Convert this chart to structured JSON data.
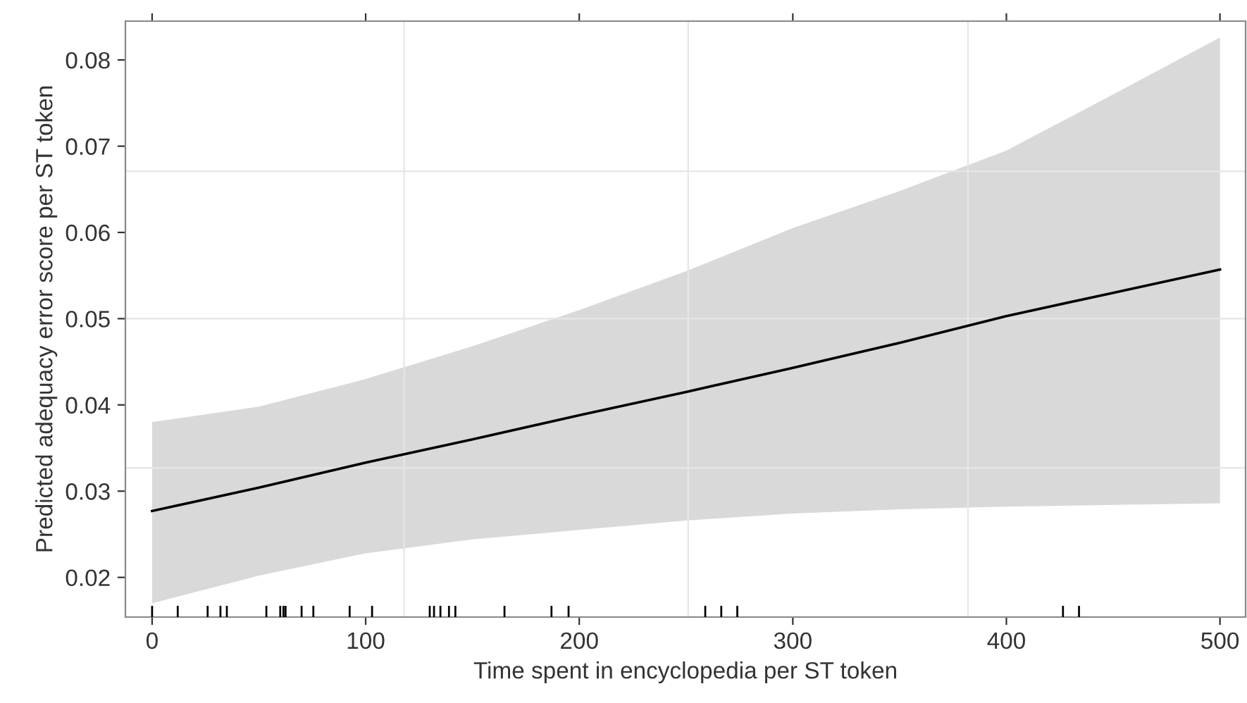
{
  "chart_data": {
    "type": "line",
    "xlabel": "Time spent in encyclopedia per ST token",
    "ylabel": "Predicted adequacy error score per ST token",
    "xlim": [
      -12.5,
      512
    ],
    "ylim": [
      0.0154,
      0.0845
    ],
    "xticks": [
      0,
      100,
      200,
      300,
      400,
      500
    ],
    "yticks": [
      0.02,
      0.03,
      0.04,
      0.05,
      0.06,
      0.07,
      0.08
    ],
    "series": [
      {
        "color": "#000000",
        "x": [
          0,
          50,
          100,
          150,
          200,
          250,
          300,
          350,
          400,
          450,
          500
        ],
        "values": [
          0.0277,
          0.0304,
          0.0333,
          0.036,
          0.0388,
          0.0415,
          0.0443,
          0.0472,
          0.0503,
          0.053,
          0.0557
        ],
        "lower": [
          0.017,
          0.0202,
          0.0228,
          0.0244,
          0.0255,
          0.0266,
          0.0274,
          0.0279,
          0.0282,
          0.0284,
          0.0286
        ],
        "upper": [
          0.038,
          0.0398,
          0.043,
          0.0468,
          0.051,
          0.0555,
          0.0605,
          0.0648,
          0.0695,
          0.076,
          0.0826
        ]
      },
      {
        "type": "bar",
        "color": "#000000",
        "base": [
          0.0154,
          0.0154,
          0.0154,
          0.0154,
          0.0154,
          0.0154,
          0.0154,
          0.0154,
          0.0154,
          0.0154,
          0.0154,
          0.0154,
          0.0154,
          0.0154,
          0.0154,
          0.0154,
          0.0154,
          0.0154,
          0.0154,
          0.0154,
          0.0154,
          0.0154,
          0.0154,
          0.0154,
          0.0154,
          0.0154
        ],
        "x": [
          0,
          12,
          26,
          32,
          35,
          53.5,
          60,
          61.5,
          62.5,
          70,
          75.5,
          92.5,
          103,
          130,
          132,
          135,
          139,
          142,
          165,
          187,
          195,
          259,
          266.5,
          274,
          426.5,
          434
        ],
        "values": [
          0.0013,
          0.0013,
          0.0013,
          0.0013,
          0.0013,
          0.0013,
          0.0013,
          0.0013,
          0.0013,
          0.0013,
          0.0013,
          0.0013,
          0.0013,
          0.0013,
          0.0013,
          0.0013,
          0.0013,
          0.0013,
          0.0013,
          0.0013,
          0.0013,
          0.0013,
          0.0013,
          0.0013,
          0.0013,
          0.0013
        ]
      }
    ],
    "ref_lines": [
      {
        "axis": "x",
        "value": 118,
        "color": "#e6e6e6"
      },
      {
        "axis": "x",
        "value": 251,
        "color": "#e6e6e6"
      },
      {
        "axis": "x",
        "value": 382,
        "color": "#e6e6e6"
      },
      {
        "axis": "y",
        "value": 0.0327,
        "color": "#e6e6e6"
      },
      {
        "axis": "y",
        "value": 0.05,
        "color": "#e6e6e6"
      },
      {
        "axis": "y",
        "value": 0.0671,
        "color": "#e6e6e6"
      }
    ],
    "grid": false,
    "legend": false
  }
}
